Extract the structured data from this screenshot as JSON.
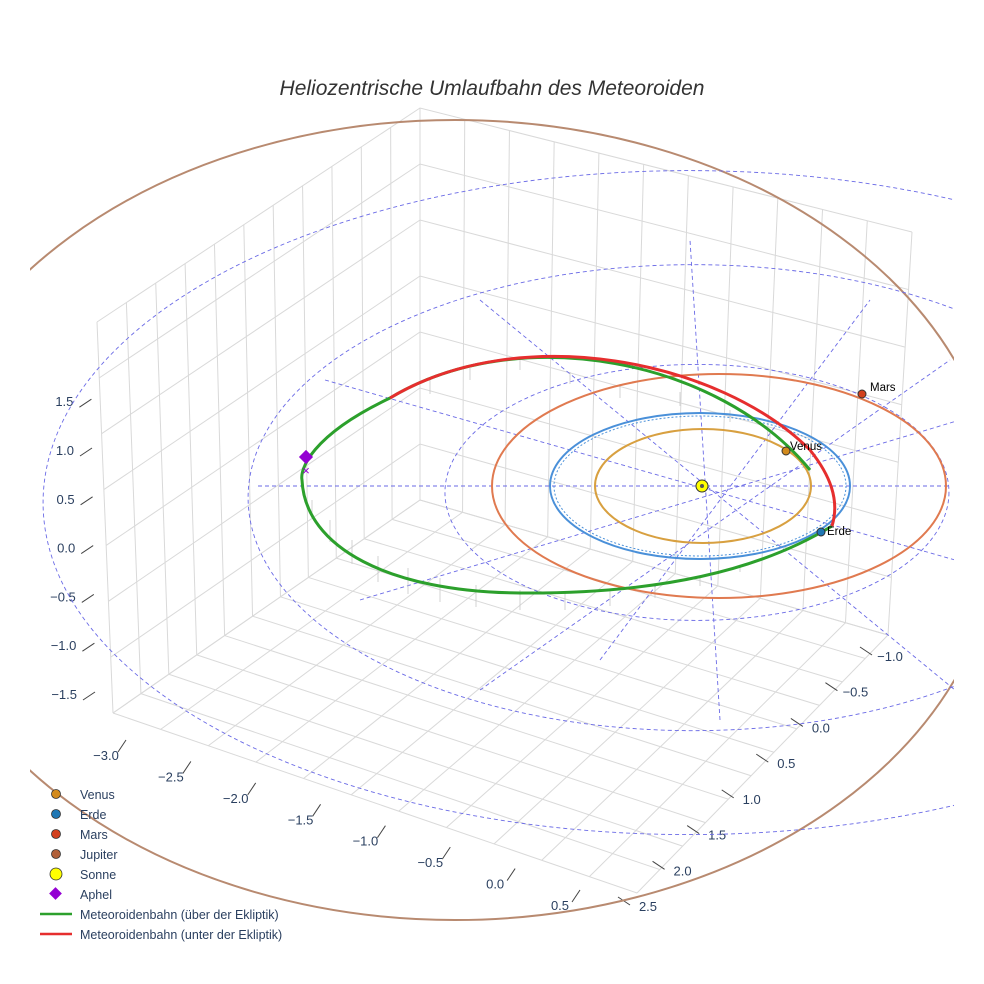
{
  "chart_data": {
    "type": "line",
    "title": "Heliozentrische Umlaufbahn des Meteoroiden",
    "axes": {
      "x": {
        "ticks": [
          "−3.0",
          "−2.5",
          "−2.0",
          "−1.5",
          "−1.0",
          "−0.5",
          "0.0",
          "0.5"
        ]
      },
      "y": {
        "ticks": [
          "−1.0",
          "−0.5",
          "0.0",
          "0.5",
          "1.0",
          "1.5",
          "2.0",
          "2.5"
        ]
      },
      "z": {
        "ticks": [
          "−1.5",
          "−1.0",
          "−0.5",
          "0.0",
          "0.5",
          "1.0",
          "1.5"
        ]
      },
      "grid": true
    },
    "bodies": [
      {
        "name": "Venus",
        "label": "Venus",
        "a_au": 0.72,
        "color": "#d8a040",
        "marker_color": "#d28a1c"
      },
      {
        "name": "Erde",
        "label": "Erde",
        "a_au": 1.0,
        "color": "#4a90d9",
        "marker_color": "#1f77b4"
      },
      {
        "name": "Mars",
        "label": "Mars",
        "a_au": 1.52,
        "color": "#e07a50",
        "marker_color": "#d2401e"
      },
      {
        "name": "Jupiter",
        "label": "",
        "a_au": 5.2,
        "color": "#b88a70",
        "marker_color": "#b0603a"
      }
    ],
    "sun": {
      "name": "Sonne",
      "color": "#ffff00"
    },
    "aphel": {
      "name": "Aphel",
      "color": "#9400d3"
    },
    "meteoroid": {
      "above": {
        "name": "Meteoroidenbahn (über der Ekliptik)",
        "color": "#2ca02c"
      },
      "below": {
        "name": "Meteoroidenbahn (unter der Ekliptik)",
        "color": "#e62e2e"
      }
    },
    "legend": {
      "placement": "bottom-left",
      "entries": [
        "Venus",
        "Erde",
        "Mars",
        "Jupiter",
        "Sonne",
        "Aphel",
        "Meteoroidenbahn (über der Ekliptik)",
        "Meteoroidenbahn (unter der Ekliptik)"
      ]
    }
  }
}
